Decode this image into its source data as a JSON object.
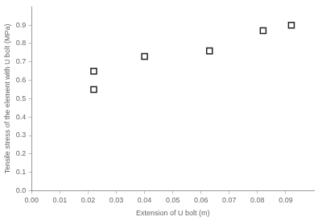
{
  "chart_data": {
    "type": "scatter",
    "xlabel": "Extension of U bolt (m)",
    "ylabel": "Tensile stress of the element with U bolt (MPa)",
    "x": [
      0.022,
      0.022,
      0.04,
      0.063,
      0.082,
      0.092
    ],
    "values": [
      0.65,
      0.55,
      0.73,
      0.76,
      0.87,
      0.9
    ],
    "xlim": [
      0,
      0.1
    ],
    "ylim": [
      0,
      1.0
    ],
    "xticks": [
      {
        "value": 0,
        "label": "0.00"
      },
      0.01,
      0.02,
      0.03,
      0.04,
      0.05,
      0.06,
      0.07,
      0.08,
      0.09
    ],
    "yticks": [
      {
        "value": 0,
        "label": "0.0"
      },
      0.1,
      0.2,
      0.3,
      0.4,
      0.5,
      0.6,
      0.7,
      0.8,
      0.9
    ],
    "marker": "square",
    "color": "#222222",
    "grid": false
  }
}
